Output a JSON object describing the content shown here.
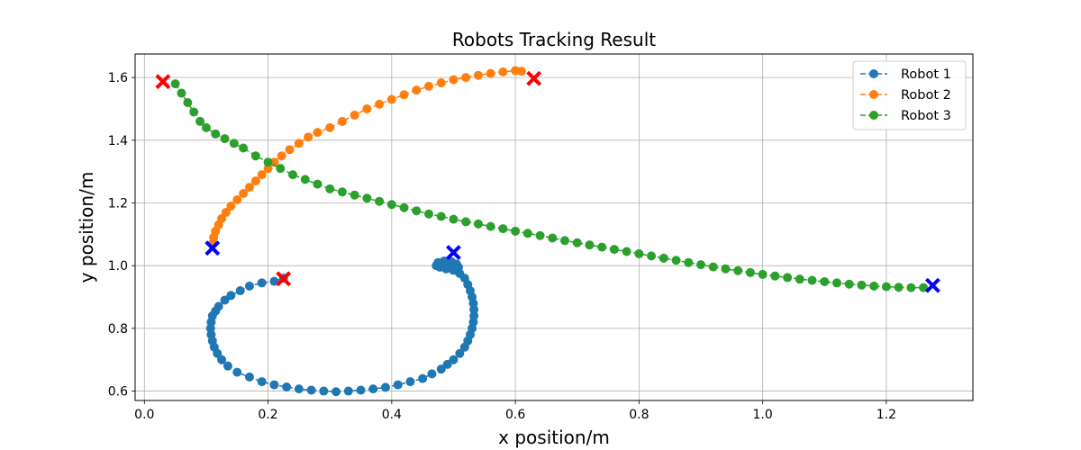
{
  "chart_data": {
    "type": "scatter",
    "title": "Robots Tracking Result",
    "xlabel": "x position/m",
    "ylabel": "y position/m",
    "xlim": [
      -0.015,
      1.34
    ],
    "ylim": [
      0.57,
      1.675
    ],
    "xticks": [
      "0.0",
      "0.2",
      "0.4",
      "0.6",
      "0.8",
      "1.0",
      "1.2"
    ],
    "xtick_values": [
      0.0,
      0.2,
      0.4,
      0.6,
      0.8,
      1.0,
      1.2
    ],
    "yticks": [
      "0.6",
      "0.8",
      "1.0",
      "1.2",
      "1.4",
      "1.6"
    ],
    "ytick_values": [
      0.6,
      0.8,
      1.0,
      1.2,
      1.4,
      1.6
    ],
    "grid": true,
    "legend_position": "top-right",
    "series": [
      {
        "name": "Robot 1",
        "color": "#1f77b4",
        "line_style": "dashed",
        "marker": "circle",
        "points": [
          [
            0.225,
            0.96
          ],
          [
            0.21,
            0.95
          ],
          [
            0.19,
            0.945
          ],
          [
            0.17,
            0.935
          ],
          [
            0.155,
            0.92
          ],
          [
            0.14,
            0.905
          ],
          [
            0.13,
            0.89
          ],
          [
            0.12,
            0.87
          ],
          [
            0.115,
            0.855
          ],
          [
            0.11,
            0.84
          ],
          [
            0.108,
            0.82
          ],
          [
            0.107,
            0.8
          ],
          [
            0.108,
            0.78
          ],
          [
            0.11,
            0.76
          ],
          [
            0.113,
            0.74
          ],
          [
            0.118,
            0.72
          ],
          [
            0.125,
            0.7
          ],
          [
            0.135,
            0.68
          ],
          [
            0.15,
            0.66
          ],
          [
            0.17,
            0.645
          ],
          [
            0.19,
            0.63
          ],
          [
            0.21,
            0.62
          ],
          [
            0.23,
            0.613
          ],
          [
            0.25,
            0.607
          ],
          [
            0.27,
            0.603
          ],
          [
            0.29,
            0.6
          ],
          [
            0.31,
            0.598
          ],
          [
            0.33,
            0.6
          ],
          [
            0.35,
            0.603
          ],
          [
            0.37,
            0.607
          ],
          [
            0.39,
            0.612
          ],
          [
            0.41,
            0.62
          ],
          [
            0.43,
            0.63
          ],
          [
            0.45,
            0.64
          ],
          [
            0.465,
            0.655
          ],
          [
            0.48,
            0.67
          ],
          [
            0.49,
            0.685
          ],
          [
            0.5,
            0.7
          ],
          [
            0.51,
            0.72
          ],
          [
            0.518,
            0.74
          ],
          [
            0.523,
            0.76
          ],
          [
            0.527,
            0.78
          ],
          [
            0.53,
            0.8
          ],
          [
            0.532,
            0.82
          ],
          [
            0.533,
            0.84
          ],
          [
            0.533,
            0.86
          ],
          [
            0.532,
            0.88
          ],
          [
            0.53,
            0.9
          ],
          [
            0.527,
            0.92
          ],
          [
            0.523,
            0.94
          ],
          [
            0.518,
            0.96
          ],
          [
            0.51,
            0.975
          ],
          [
            0.5,
            0.985
          ],
          [
            0.488,
            0.99
          ],
          [
            0.478,
            0.995
          ],
          [
            0.472,
            1.0
          ],
          [
            0.475,
            1.01
          ],
          [
            0.485,
            1.015
          ],
          [
            0.497,
            1.012
          ],
          [
            0.505,
            1.005
          ],
          [
            0.508,
            0.995
          ],
          [
            0.5,
            0.99
          ],
          [
            0.49,
            0.992
          ]
        ]
      },
      {
        "name": "Robot 2",
        "color": "#ff7f0e",
        "line_style": "dashed",
        "marker": "circle",
        "points": [
          [
            0.11,
            1.07
          ],
          [
            0.112,
            1.09
          ],
          [
            0.115,
            1.11
          ],
          [
            0.12,
            1.13
          ],
          [
            0.125,
            1.15
          ],
          [
            0.132,
            1.17
          ],
          [
            0.14,
            1.19
          ],
          [
            0.15,
            1.21
          ],
          [
            0.16,
            1.23
          ],
          [
            0.17,
            1.25
          ],
          [
            0.18,
            1.27
          ],
          [
            0.19,
            1.29
          ],
          [
            0.2,
            1.31
          ],
          [
            0.21,
            1.33
          ],
          [
            0.222,
            1.35
          ],
          [
            0.235,
            1.37
          ],
          [
            0.25,
            1.39
          ],
          [
            0.265,
            1.41
          ],
          [
            0.28,
            1.425
          ],
          [
            0.3,
            1.44
          ],
          [
            0.32,
            1.46
          ],
          [
            0.34,
            1.48
          ],
          [
            0.36,
            1.5
          ],
          [
            0.38,
            1.515
          ],
          [
            0.4,
            1.53
          ],
          [
            0.42,
            1.545
          ],
          [
            0.44,
            1.56
          ],
          [
            0.46,
            1.572
          ],
          [
            0.48,
            1.583
          ],
          [
            0.5,
            1.593
          ],
          [
            0.52,
            1.6
          ],
          [
            0.54,
            1.607
          ],
          [
            0.56,
            1.613
          ],
          [
            0.58,
            1.618
          ],
          [
            0.6,
            1.622
          ],
          [
            0.61,
            1.62
          ]
        ]
      },
      {
        "name": "Robot 3",
        "color": "#2ca02c",
        "line_style": "dashed",
        "marker": "circle",
        "points": [
          [
            0.05,
            1.58
          ],
          [
            0.06,
            1.55
          ],
          [
            0.07,
            1.52
          ],
          [
            0.08,
            1.49
          ],
          [
            0.09,
            1.46
          ],
          [
            0.1,
            1.44
          ],
          [
            0.115,
            1.42
          ],
          [
            0.13,
            1.405
          ],
          [
            0.145,
            1.39
          ],
          [
            0.16,
            1.375
          ],
          [
            0.18,
            1.35
          ],
          [
            0.2,
            1.33
          ],
          [
            0.22,
            1.31
          ],
          [
            0.24,
            1.29
          ],
          [
            0.26,
            1.275
          ],
          [
            0.28,
            1.26
          ],
          [
            0.3,
            1.245
          ],
          [
            0.32,
            1.235
          ],
          [
            0.34,
            1.225
          ],
          [
            0.36,
            1.215
          ],
          [
            0.38,
            1.205
          ],
          [
            0.4,
            1.195
          ],
          [
            0.42,
            1.185
          ],
          [
            0.44,
            1.175
          ],
          [
            0.46,
            1.165
          ],
          [
            0.48,
            1.157
          ],
          [
            0.5,
            1.148
          ],
          [
            0.52,
            1.14
          ],
          [
            0.54,
            1.133
          ],
          [
            0.56,
            1.125
          ],
          [
            0.58,
            1.118
          ],
          [
            0.6,
            1.11
          ],
          [
            0.62,
            1.103
          ],
          [
            0.64,
            1.096
          ],
          [
            0.66,
            1.088
          ],
          [
            0.68,
            1.08
          ],
          [
            0.7,
            1.073
          ],
          [
            0.72,
            1.066
          ],
          [
            0.74,
            1.059
          ],
          [
            0.76,
            1.052
          ],
          [
            0.78,
            1.045
          ],
          [
            0.8,
            1.038
          ],
          [
            0.82,
            1.031
          ],
          [
            0.84,
            1.024
          ],
          [
            0.86,
            1.017
          ],
          [
            0.88,
            1.01
          ],
          [
            0.9,
            1.003
          ],
          [
            0.92,
            0.996
          ],
          [
            0.94,
            0.99
          ],
          [
            0.96,
            0.984
          ],
          [
            0.98,
            0.978
          ],
          [
            1.0,
            0.972
          ],
          [
            1.02,
            0.967
          ],
          [
            1.04,
            0.962
          ],
          [
            1.06,
            0.957
          ],
          [
            1.08,
            0.953
          ],
          [
            1.1,
            0.949
          ],
          [
            1.12,
            0.945
          ],
          [
            1.14,
            0.941
          ],
          [
            1.16,
            0.938
          ],
          [
            1.18,
            0.935
          ],
          [
            1.2,
            0.933
          ],
          [
            1.22,
            0.931
          ],
          [
            1.24,
            0.93
          ],
          [
            1.26,
            0.93
          ]
        ]
      }
    ],
    "start_markers": {
      "color": "#ff0000",
      "marker": "x",
      "points": [
        [
          0.225,
          0.958
        ],
        [
          0.63,
          1.597
        ],
        [
          0.03,
          1.587
        ]
      ]
    },
    "end_markers": {
      "color": "#0000ff",
      "marker": "x",
      "points": [
        [
          0.5,
          1.042
        ],
        [
          0.11,
          1.056
        ],
        [
          1.275,
          0.937
        ]
      ]
    }
  }
}
